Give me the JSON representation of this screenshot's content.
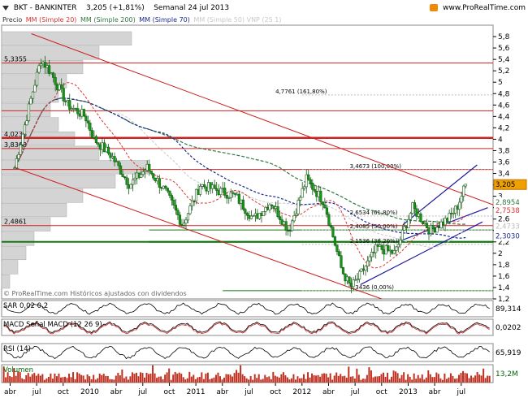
{
  "header": {
    "symbol": "BKT - BANKINTER",
    "price_change": "3,205 (+1,81%)",
    "period": "Semanal  24 jul 2013",
    "site": "www.ProRealTime.com"
  },
  "legend": {
    "precio": "Precio",
    "ma20": "MM (Simple 20)",
    "ma200": "MM (Simple 200)",
    "ma70": "MM (Simple 70)",
    "ma50_vnp": "MM (Simple 50)  VNP (25 1)"
  },
  "colors": {
    "ma20": "#dd3333",
    "ma200": "#337744",
    "ma70": "#1a2a8c",
    "ma50": "#c8c8c8",
    "channel": "#cc2222",
    "blue_channel": "#1a1aa0",
    "fib_green": "#117711",
    "candle": "#119911"
  },
  "watermark": "© ProRealTime.com  Históricos ajustados con dividendos",
  "chart_data": [
    {
      "type": "candlestick",
      "title": "BKT - BANKINTER",
      "y_axis_labels": [
        "5,8",
        "5,6",
        "5,4",
        "5,2",
        "5",
        "4,8",
        "4,6",
        "4,4",
        "4,2",
        "4",
        "3,8",
        "3,6",
        "3,4",
        "3,2",
        "3",
        "2,8",
        "2,6",
        "2,4",
        "2,2",
        "2",
        "1,8",
        "1,6",
        "1,4",
        "1,2"
      ],
      "ylim": [
        1.2,
        6.0
      ],
      "x_axis_labels": [
        "abr",
        "jul",
        "oct",
        "2010",
        "abr",
        "jul",
        "oct",
        "2011",
        "abr",
        "jul",
        "oct",
        "2012",
        "abr",
        "jul",
        "oct",
        "2013",
        "abr",
        "jul"
      ],
      "weekly_close_trend": {
        "x": [
          "2009-04",
          "2009-06",
          "2009-07",
          "2009-08",
          "2009-10",
          "2009-12",
          "2010-01",
          "2010-03",
          "2010-05",
          "2010-07",
          "2010-09",
          "2010-11",
          "2011-01",
          "2011-03",
          "2011-05",
          "2011-07",
          "2011-09",
          "2011-11",
          "2012-01",
          "2012-03",
          "2012-05",
          "2012-06",
          "2012-07",
          "2012-09",
          "2012-11",
          "2013-01",
          "2013-03",
          "2013-05",
          "2013-06",
          "2013-07"
        ],
        "y": [
          3.5,
          4.8,
          5.4,
          5.2,
          4.6,
          4.4,
          4.0,
          3.7,
          3.2,
          3.5,
          3.1,
          2.5,
          3.2,
          3.1,
          3.0,
          2.6,
          2.9,
          2.4,
          3.3,
          2.9,
          1.7,
          1.4,
          1.6,
          2.1,
          2.0,
          2.8,
          2.4,
          2.6,
          2.8,
          3.2
        ]
      },
      "last_close": 3.205,
      "horizontal_levels": [
        {
          "value": 5.3355,
          "label": "5,3355"
        },
        {
          "value": 4.5,
          "label": ""
        },
        {
          "value": 4.0236,
          "label": "4,0236"
        },
        {
          "value": 3.8368,
          "label": "3,8368"
        },
        {
          "value": 3.47,
          "label": ""
        },
        {
          "value": 2.4861,
          "label": "2,4861"
        }
      ],
      "fibonacci": [
        {
          "value": 4.7761,
          "label": "4,7761 (161,80%)"
        },
        {
          "value": 3.4673,
          "label": "3,4673 (100,00%)"
        },
        {
          "value": 2.6534,
          "label": "2,6534 (61,80%)"
        },
        {
          "value": 2.4085,
          "label": "2,4085 (50,00%)"
        },
        {
          "value": 2.1536,
          "label": "2,1536 (38,20%)"
        },
        {
          "value": 1.3436,
          "label": "1,3436 (0,00%)"
        }
      ],
      "price_tags": [
        {
          "value": 3.205,
          "label": "3,205"
        },
        {
          "value": 2.8954,
          "label": "2,8954"
        },
        {
          "value": 2.7538,
          "label": "2,7538"
        },
        {
          "value": 2.4733,
          "label": "2,4733"
        },
        {
          "value": 2.303,
          "label": "2,3030"
        }
      ],
      "volume_profile": [
        0.8,
        0.6,
        0.5,
        0.4,
        0.35,
        0.3,
        0.35,
        0.45,
        0.6,
        0.9,
        0.7,
        0.5,
        0.4,
        0.3,
        0.2,
        0.15,
        0.1,
        0.05
      ],
      "legend": [
        "Precio",
        "MM (Simple 20)",
        "MM (Simple 200)",
        "MM (Simple 70)",
        "MM (Simple 50)",
        "VNP (25 1)"
      ]
    },
    {
      "type": "line",
      "title": "SAR 0,02 0,2",
      "last_value_label": "89,314"
    },
    {
      "type": "line",
      "title": "MACD (12 26 9)",
      "series_labels": [
        "MACD Señal",
        "MACD (12 26 9)"
      ],
      "last_value_label": "0,0202"
    },
    {
      "type": "line",
      "title": "RSI (14)",
      "last_value_label": "65,919"
    },
    {
      "type": "bar",
      "title": "Volumen",
      "last_value_label": "13,2M"
    }
  ]
}
